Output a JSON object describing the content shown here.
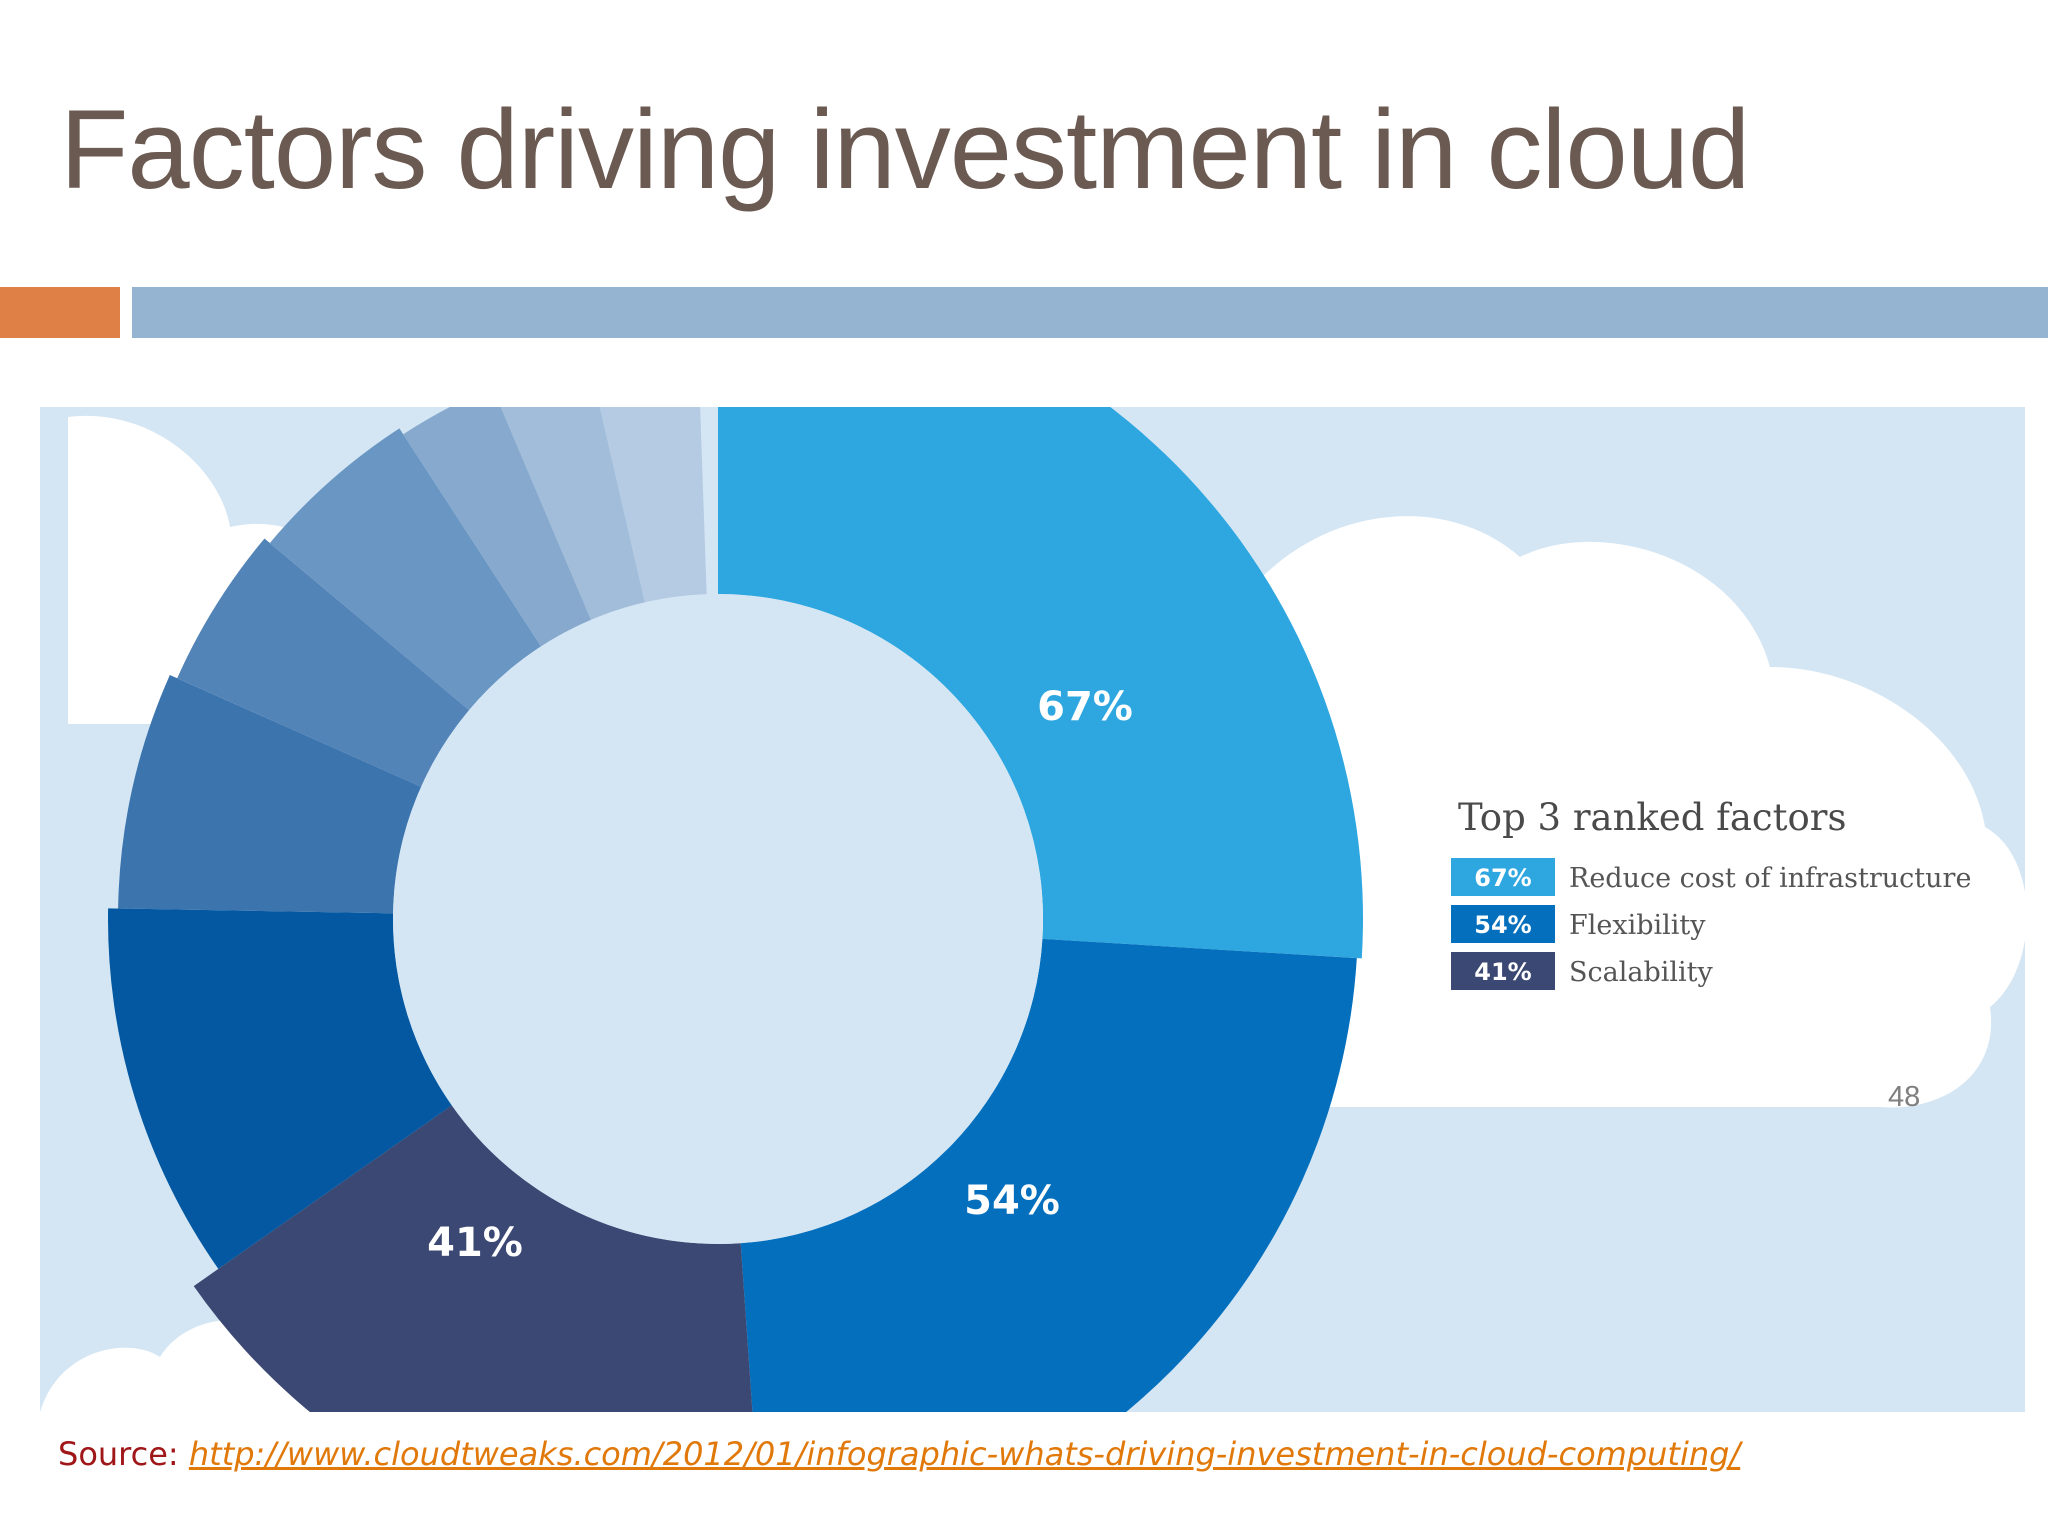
{
  "slide": {
    "title": "Factors driving investment in cloud",
    "page_number": "48",
    "source_label": "Source:",
    "source_url": "http://www.cloudtweaks.com/2012/01/infographic-whats-driving-investment-in-cloud-computing/"
  },
  "colors": {
    "title": "#6b5a52",
    "accent_orange": "#df8046",
    "accent_blue": "#94b4d1",
    "panel_background": "#d4e6f4"
  },
  "chart_data": {
    "type": "pie",
    "title": "",
    "legend_title": "Top 3 ranked factors",
    "legend_position": "right",
    "donut": true,
    "labeled_slices": [
      {
        "label": "67%",
        "value": 67,
        "legend_text": "Reduce cost of infrastructure",
        "color": "#2ea7e0"
      },
      {
        "label": "54%",
        "value": 54,
        "legend_text": "Flexibility",
        "color": "#036fbd"
      },
      {
        "label": "41%",
        "value": 41,
        "legend_text": "Scalability",
        "color": "#3b4873"
      }
    ],
    "unlabeled_slice_colors": [
      "#0358a1",
      "#3c74ad",
      "#5384b8",
      "#6a96c3",
      "#87a9cd",
      "#a1bdda",
      "#b5cbe3"
    ]
  }
}
